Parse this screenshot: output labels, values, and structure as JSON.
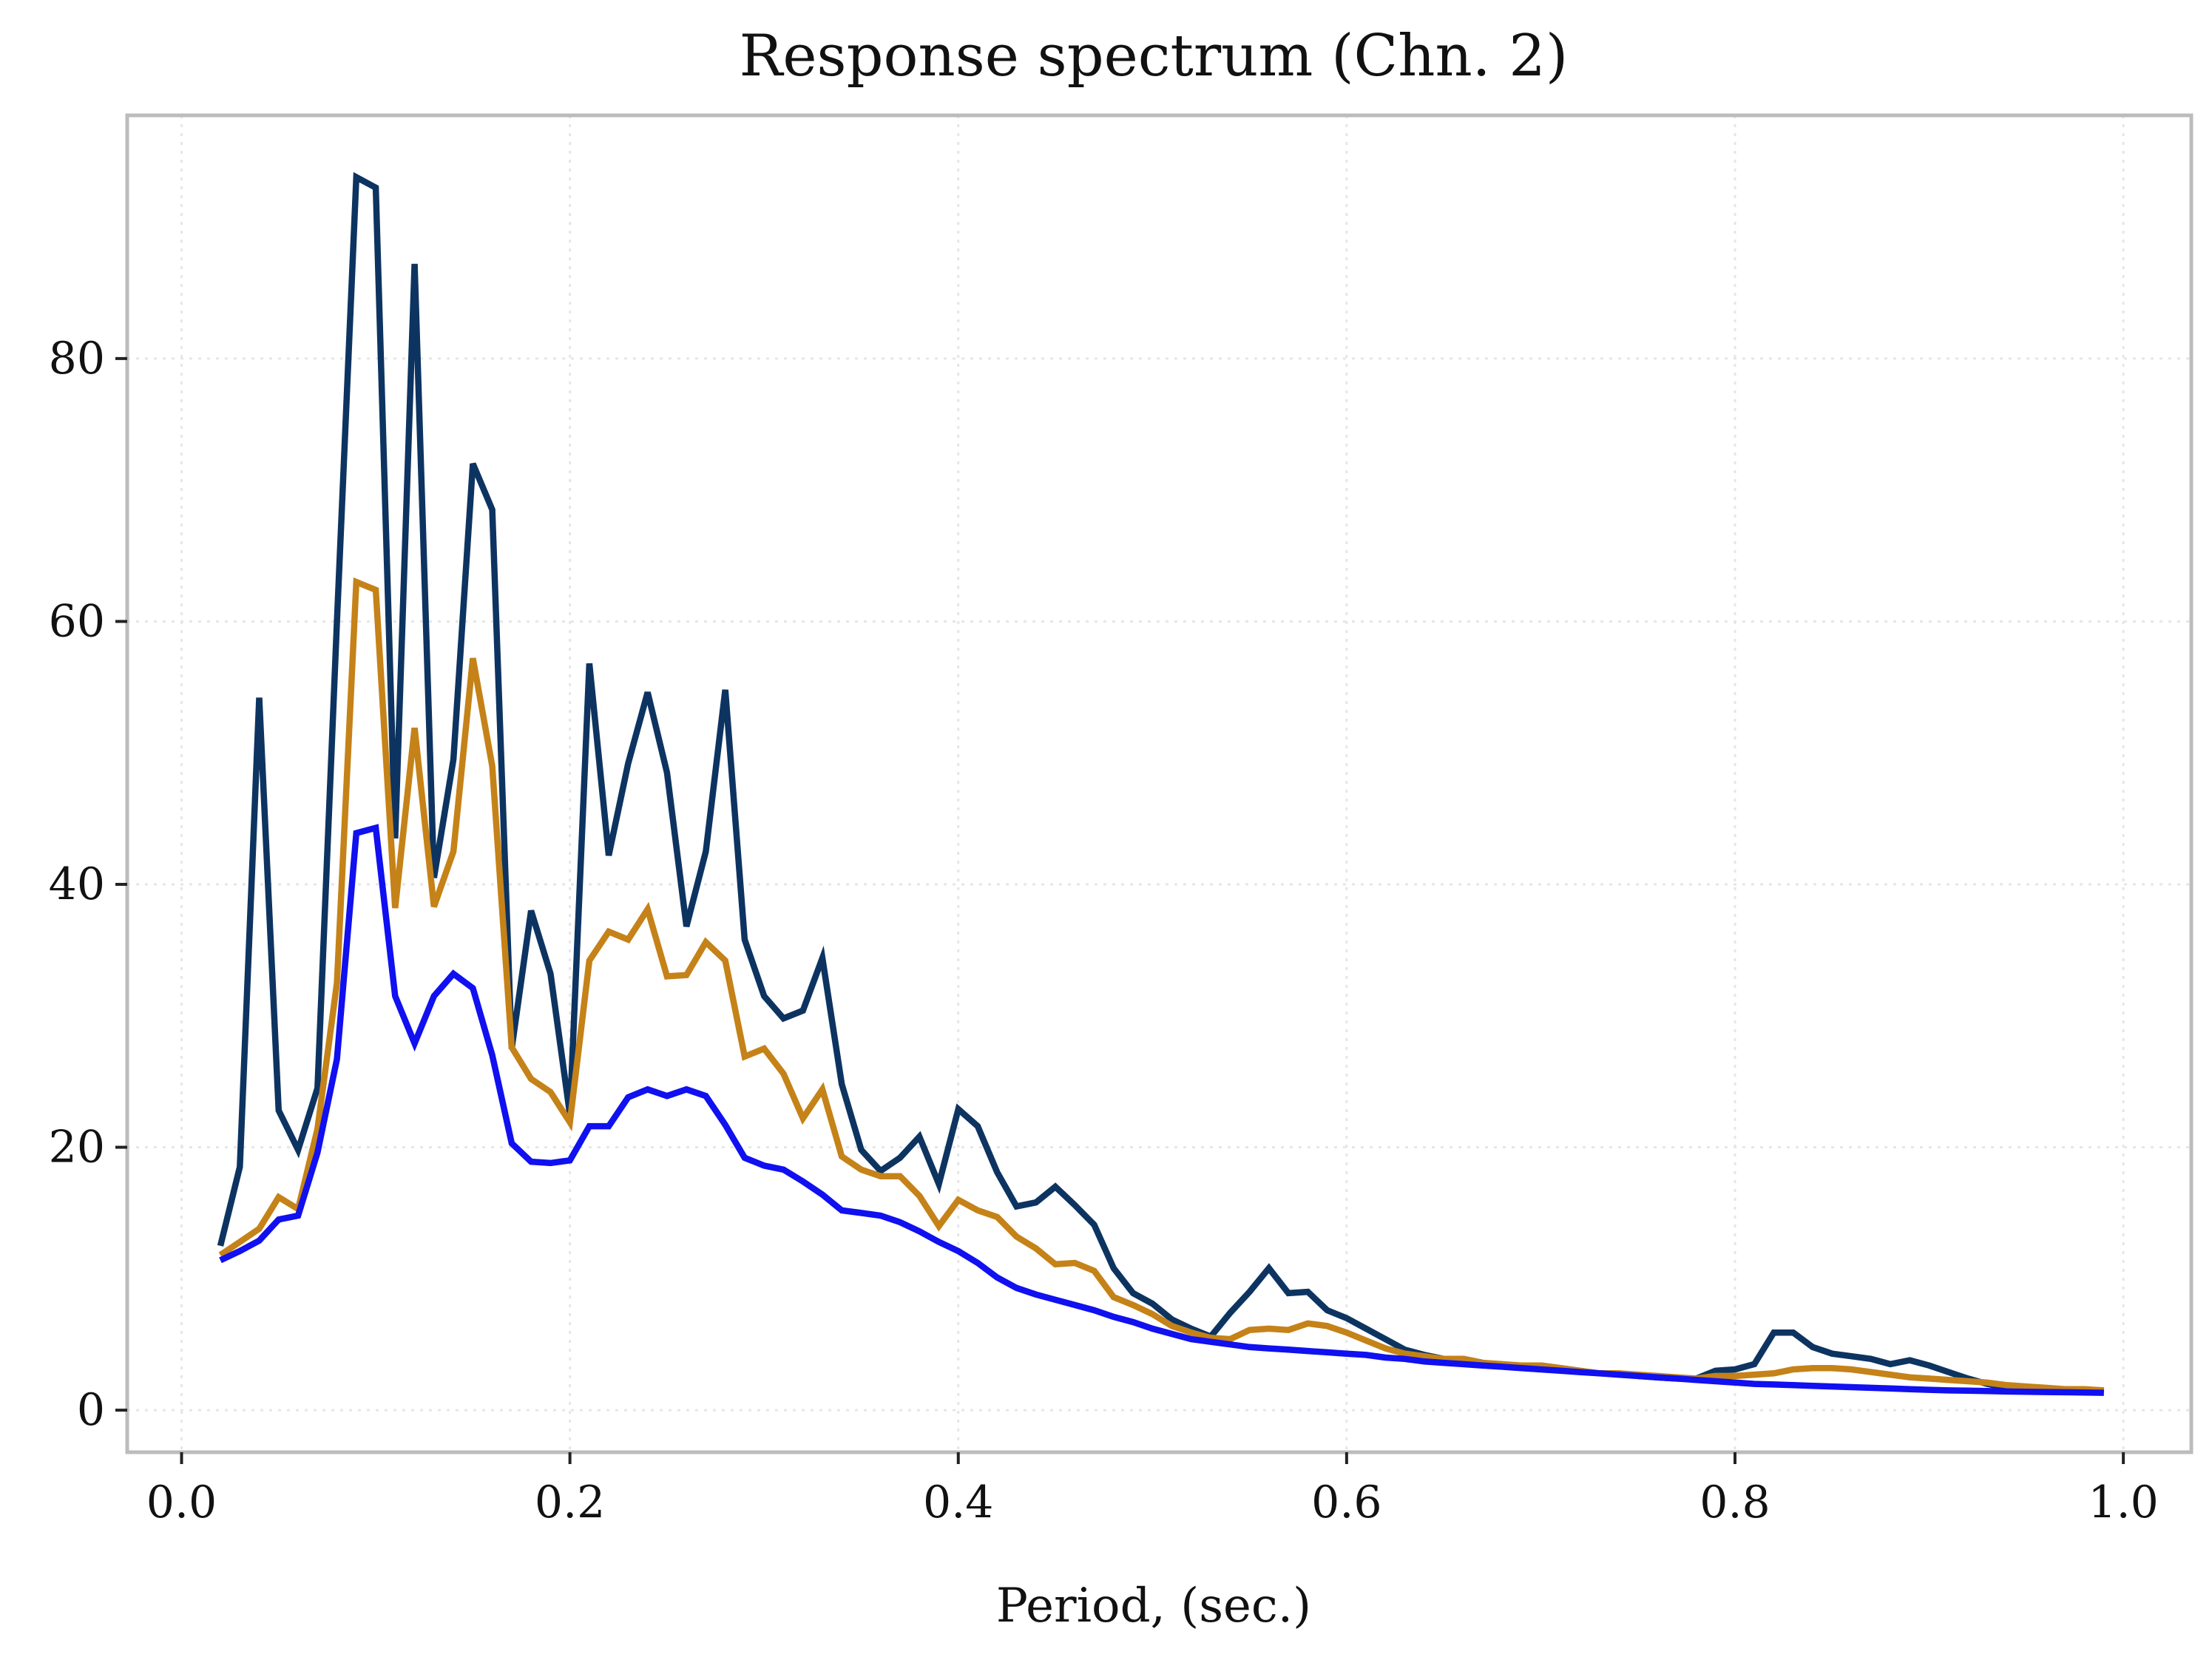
{
  "chart_data": {
    "type": "line",
    "title": "Response spectrum (Chn. 2)",
    "xlabel": "Period, (sec.)",
    "ylabel": "",
    "xlim": [
      -0.028,
      1.035
    ],
    "ylim": [
      -3.2,
      98.5
    ],
    "xticks": [
      0.0,
      0.2,
      0.4,
      0.6,
      0.8,
      1.0
    ],
    "xtick_labels": [
      "0.0",
      "0.2",
      "0.4",
      "0.6",
      "0.8",
      "1.0"
    ],
    "yticks": [
      0,
      20,
      40,
      60,
      80
    ],
    "ytick_labels": [
      "0",
      "20",
      "40",
      "60",
      "80"
    ],
    "grid": true,
    "legend": "none",
    "series": [
      {
        "color": "#0d3461",
        "x": [
          0.02,
          0.03,
          0.04,
          0.05,
          0.06,
          0.07,
          0.08,
          0.09,
          0.1,
          0.11,
          0.12,
          0.13,
          0.14,
          0.15,
          0.16,
          0.17,
          0.18,
          0.19,
          0.2,
          0.21,
          0.22,
          0.23,
          0.24,
          0.25,
          0.26,
          0.27,
          0.28,
          0.29,
          0.3,
          0.31,
          0.32,
          0.33,
          0.34,
          0.35,
          0.36,
          0.37,
          0.38,
          0.39,
          0.4,
          0.41,
          0.42,
          0.43,
          0.44,
          0.45,
          0.46,
          0.47,
          0.48,
          0.49,
          0.5,
          0.51,
          0.52,
          0.53,
          0.54,
          0.55,
          0.56,
          0.57,
          0.58,
          0.59,
          0.6,
          0.61,
          0.62,
          0.63,
          0.64,
          0.65,
          0.66,
          0.67,
          0.68,
          0.69,
          0.7,
          0.71,
          0.72,
          0.73,
          0.74,
          0.75,
          0.76,
          0.77,
          0.78,
          0.79,
          0.8,
          0.81,
          0.82,
          0.83,
          0.84,
          0.85,
          0.86,
          0.87,
          0.88,
          0.89,
          0.9,
          0.91,
          0.92,
          0.93,
          0.94,
          0.95,
          0.96,
          0.97,
          0.98,
          0.99
        ],
        "y": [
          12.5,
          18.5,
          54.2,
          22.8,
          19.8,
          24.5,
          60.0,
          93.8,
          93.0,
          43.5,
          87.2,
          40.5,
          49.5,
          72.0,
          68.5,
          27.5,
          38.0,
          33.2,
          22.5,
          56.8,
          42.2,
          49.2,
          54.6,
          48.5,
          36.8,
          42.5,
          54.8,
          35.8,
          31.5,
          29.8,
          30.4,
          34.4,
          24.8,
          19.8,
          18.2,
          19.2,
          20.8,
          17.2,
          22.9,
          21.6,
          18.1,
          15.5,
          15.8,
          17.0,
          15.6,
          14.1,
          10.8,
          8.9,
          8.1,
          6.9,
          6.2,
          5.6,
          7.4,
          9.0,
          10.8,
          8.9,
          9.0,
          7.6,
          7.0,
          6.2,
          5.4,
          4.6,
          4.2,
          3.9,
          3.9,
          3.6,
          3.4,
          3.4,
          3.4,
          3.2,
          3.0,
          2.8,
          2.8,
          2.6,
          2.5,
          2.4,
          2.4,
          3.0,
          3.1,
          3.5,
          5.9,
          5.9,
          4.8,
          4.3,
          4.1,
          3.9,
          3.5,
          3.8,
          3.4,
          2.9,
          2.4,
          2.0,
          1.7,
          1.6,
          1.6,
          1.5,
          1.5,
          1.4
        ]
      },
      {
        "color": "#c58218",
        "x": [
          0.02,
          0.03,
          0.04,
          0.05,
          0.06,
          0.07,
          0.08,
          0.09,
          0.1,
          0.11,
          0.12,
          0.13,
          0.14,
          0.15,
          0.16,
          0.17,
          0.18,
          0.19,
          0.2,
          0.21,
          0.22,
          0.23,
          0.24,
          0.25,
          0.26,
          0.27,
          0.28,
          0.29,
          0.3,
          0.31,
          0.32,
          0.33,
          0.34,
          0.35,
          0.36,
          0.37,
          0.38,
          0.39,
          0.4,
          0.41,
          0.42,
          0.43,
          0.44,
          0.45,
          0.46,
          0.47,
          0.48,
          0.49,
          0.5,
          0.51,
          0.52,
          0.53,
          0.54,
          0.55,
          0.56,
          0.57,
          0.58,
          0.59,
          0.6,
          0.61,
          0.62,
          0.63,
          0.64,
          0.65,
          0.66,
          0.67,
          0.68,
          0.69,
          0.7,
          0.71,
          0.72,
          0.73,
          0.74,
          0.75,
          0.76,
          0.77,
          0.78,
          0.79,
          0.8,
          0.81,
          0.82,
          0.83,
          0.84,
          0.85,
          0.86,
          0.87,
          0.88,
          0.89,
          0.9,
          0.91,
          0.92,
          0.93,
          0.94,
          0.95,
          0.96,
          0.97,
          0.98,
          0.99
        ],
        "y": [
          11.8,
          12.8,
          13.8,
          16.2,
          15.3,
          21.4,
          32.5,
          63.0,
          62.4,
          38.2,
          51.9,
          38.3,
          42.5,
          57.2,
          49.0,
          27.6,
          25.2,
          24.2,
          21.9,
          34.2,
          36.4,
          35.8,
          38.1,
          33.0,
          33.1,
          35.6,
          34.2,
          26.9,
          27.5,
          25.6,
          22.2,
          24.4,
          19.3,
          18.3,
          17.8,
          17.8,
          16.3,
          14.0,
          16.0,
          15.2,
          14.7,
          13.2,
          12.3,
          11.1,
          11.2,
          10.6,
          8.6,
          8.0,
          7.3,
          6.4,
          5.9,
          5.5,
          5.4,
          6.1,
          6.2,
          6.1,
          6.6,
          6.4,
          5.9,
          5.3,
          4.7,
          4.3,
          4.1,
          3.9,
          3.9,
          3.6,
          3.5,
          3.4,
          3.4,
          3.2,
          3.0,
          2.8,
          2.8,
          2.7,
          2.6,
          2.5,
          2.4,
          2.6,
          2.6,
          2.7,
          2.8,
          3.1,
          3.2,
          3.2,
          3.1,
          2.9,
          2.7,
          2.5,
          2.4,
          2.3,
          2.2,
          2.1,
          1.9,
          1.8,
          1.7,
          1.6,
          1.6,
          1.5
        ]
      },
      {
        "color": "#1010f0",
        "x": [
          0.02,
          0.03,
          0.04,
          0.05,
          0.06,
          0.07,
          0.08,
          0.09,
          0.1,
          0.11,
          0.12,
          0.13,
          0.14,
          0.15,
          0.16,
          0.17,
          0.18,
          0.19,
          0.2,
          0.21,
          0.22,
          0.23,
          0.24,
          0.25,
          0.26,
          0.27,
          0.28,
          0.29,
          0.3,
          0.31,
          0.32,
          0.33,
          0.34,
          0.35,
          0.36,
          0.37,
          0.38,
          0.39,
          0.4,
          0.41,
          0.42,
          0.43,
          0.44,
          0.45,
          0.46,
          0.47,
          0.48,
          0.49,
          0.5,
          0.51,
          0.52,
          0.53,
          0.54,
          0.55,
          0.56,
          0.57,
          0.58,
          0.59,
          0.6,
          0.61,
          0.62,
          0.63,
          0.64,
          0.65,
          0.66,
          0.67,
          0.68,
          0.69,
          0.7,
          0.71,
          0.72,
          0.73,
          0.74,
          0.75,
          0.76,
          0.77,
          0.78,
          0.79,
          0.8,
          0.81,
          0.82,
          0.83,
          0.84,
          0.85,
          0.86,
          0.87,
          0.88,
          0.89,
          0.9,
          0.91,
          0.92,
          0.93,
          0.94,
          0.95,
          0.96,
          0.97,
          0.98,
          0.99
        ],
        "y": [
          11.4,
          12.1,
          12.9,
          14.5,
          14.8,
          19.6,
          26.7,
          43.9,
          44.3,
          31.5,
          27.9,
          31.5,
          33.2,
          32.1,
          27.0,
          20.3,
          18.9,
          18.8,
          19.0,
          21.6,
          21.6,
          23.8,
          24.4,
          23.9,
          24.4,
          23.9,
          21.7,
          19.2,
          18.6,
          18.3,
          17.4,
          16.4,
          15.2,
          15.0,
          14.8,
          14.3,
          13.6,
          12.8,
          12.1,
          11.2,
          10.1,
          9.3,
          8.8,
          8.4,
          8.0,
          7.6,
          7.1,
          6.7,
          6.2,
          5.8,
          5.4,
          5.2,
          5.0,
          4.8,
          4.7,
          4.6,
          4.5,
          4.4,
          4.3,
          4.2,
          4.0,
          3.9,
          3.7,
          3.6,
          3.5,
          3.4,
          3.3,
          3.2,
          3.1,
          3.0,
          2.9,
          2.8,
          2.7,
          2.6,
          2.5,
          2.4,
          2.3,
          2.2,
          2.1,
          2.0,
          1.95,
          1.9,
          1.85,
          1.8,
          1.75,
          1.7,
          1.65,
          1.6,
          1.55,
          1.5,
          1.48,
          1.45,
          1.42,
          1.4,
          1.38,
          1.36,
          1.34,
          1.32
        ]
      }
    ]
  }
}
